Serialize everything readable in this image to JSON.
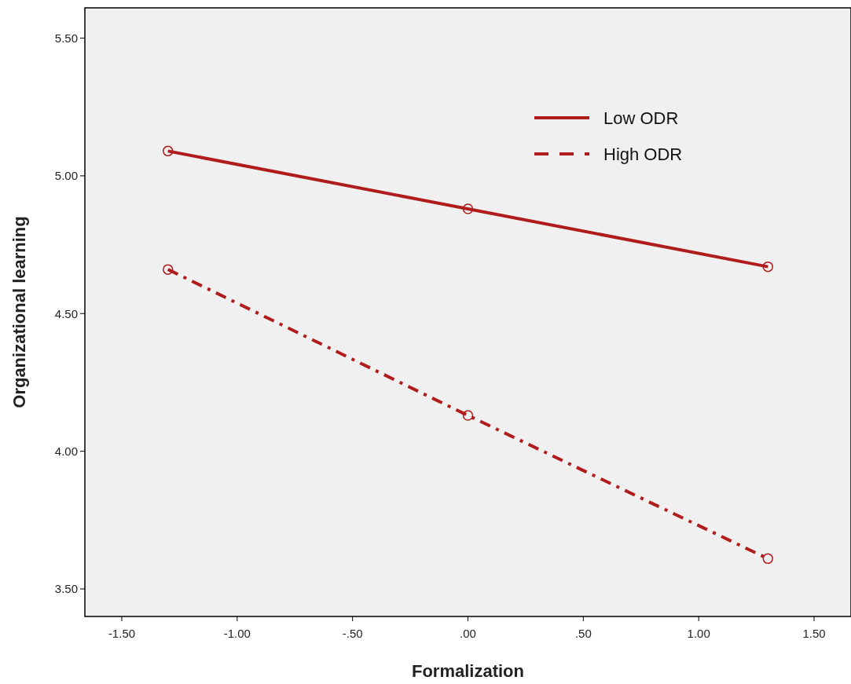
{
  "chart_data": {
    "type": "line",
    "xlabel": "Formalization",
    "ylabel": "Organizational learning",
    "x": [
      -1.3,
      0,
      1.3
    ],
    "series": [
      {
        "name": "Low ODR",
        "color": "#b01c1c",
        "values": [
          5.09,
          4.88,
          4.67
        ],
        "line_style": "solid"
      },
      {
        "name": "High ODR",
        "color": "#b01c1c",
        "values": [
          4.66,
          4.13,
          3.61
        ],
        "line_style": "dashed"
      }
    ],
    "marker": "circle",
    "legend": "top right",
    "grid": false,
    "xlim": [
      -1.66,
      1.66
    ],
    "ylim": [
      3.4,
      5.61
    ],
    "xticks": [
      {
        "value": -1.5,
        "label": "-1.50"
      },
      {
        "value": -1,
        "label": "-1.00"
      },
      {
        "value": -0.5,
        "label": "-.50"
      },
      {
        "value": 0,
        "label": ".00"
      },
      {
        "value": 0.5,
        "label": ".50"
      },
      {
        "value": 1,
        "label": "1.00"
      },
      {
        "value": 1.5,
        "label": "1.50"
      }
    ],
    "yticks": [
      {
        "value": 3.5,
        "label": "3.50"
      },
      {
        "value": 4,
        "label": "4.00"
      },
      {
        "value": 4.5,
        "label": "4.50"
      },
      {
        "value": 5,
        "label": "5.00"
      },
      {
        "value": 5.5,
        "label": "5.50"
      }
    ]
  }
}
